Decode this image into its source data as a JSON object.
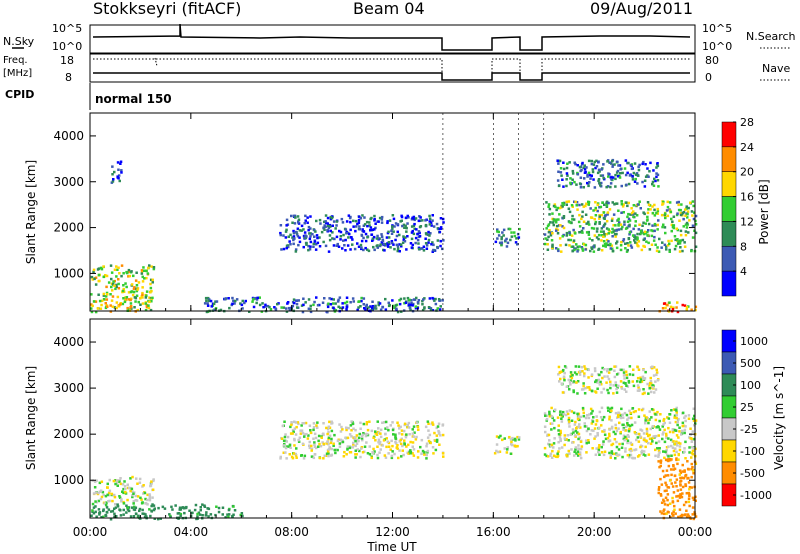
{
  "header": {
    "title": "Stokkseyri (fitACF)",
    "beam": "Beam 04",
    "date": "09/Aug/2011"
  },
  "top_panels": {
    "nsky_label": "N.Sky",
    "nsky_ticks": [
      "10^5",
      "10^0"
    ],
    "nsearch_label": "N.Search",
    "nsearch_ticks": [
      "10^5",
      "10^0"
    ],
    "freq_label_line1": "Freq.",
    "freq_label_line2": "[MHz]",
    "freq_ticks": [
      "18",
      "8"
    ],
    "nave_label": "Nave",
    "nave_ticks": [
      "80",
      "0"
    ],
    "cpid_label": "CPID",
    "cpid_value": "normal 150"
  },
  "chart_data": [
    {
      "type": "heatmap",
      "name": "power",
      "ylabel": "Slant Range [km]",
      "xlabel": "",
      "xlim": [
        0,
        24
      ],
      "ylim": [
        180,
        4500
      ],
      "ytick_values": [
        1000,
        2000,
        3000,
        4000
      ],
      "ytick_labels": [
        "1000",
        "2000",
        "3000",
        "4000"
      ],
      "colorbar_label": "Power [dB]",
      "colorbar_ticks": [
        "4",
        "8",
        "12",
        "16",
        "20",
        "24",
        "28"
      ],
      "colorbar_colors": [
        "#0000ff",
        "#3c5ab4",
        "#2e8b57",
        "#32cd32",
        "#ffd700",
        "#ff8c00",
        "#ff0000"
      ],
      "data_gaps_hours": [
        [
          14.0,
          16.0
        ],
        [
          17.0,
          18.0
        ]
      ],
      "echo_regions": [
        {
          "t0": 0.0,
          "t1": 2.5,
          "r0": 180,
          "r1": 1200,
          "value": 18
        },
        {
          "t0": 0.8,
          "t1": 1.2,
          "r0": 3000,
          "r1": 3500,
          "value": 6
        },
        {
          "t0": 4.5,
          "t1": 14.0,
          "r0": 180,
          "r1": 500,
          "value": 8
        },
        {
          "t0": 7.5,
          "t1": 14.0,
          "r0": 1500,
          "r1": 2300,
          "value": 6
        },
        {
          "t0": 16.0,
          "t1": 17.0,
          "r0": 1600,
          "r1": 2000,
          "value": 10
        },
        {
          "t0": 18.0,
          "t1": 24.0,
          "r0": 1500,
          "r1": 2600,
          "value": 14
        },
        {
          "t0": 18.5,
          "t1": 22.5,
          "r0": 2900,
          "r1": 3500,
          "value": 8
        },
        {
          "t0": 22.5,
          "t1": 24.0,
          "r0": 180,
          "r1": 400,
          "value": 24
        }
      ]
    },
    {
      "type": "heatmap",
      "name": "velocity",
      "ylabel": "Slant Range [km]",
      "xlabel": "Time UT",
      "xlim": [
        0,
        24
      ],
      "ylim": [
        180,
        4500
      ],
      "xtick_labels": [
        "00:00",
        "04:00",
        "08:00",
        "12:00",
        "16:00",
        "20:00",
        "00:00"
      ],
      "ytick_values": [
        1000,
        2000,
        3000,
        4000
      ],
      "ytick_labels": [
        "1000",
        "2000",
        "3000",
        "4000"
      ],
      "colorbar_label": "Velocity [m s^-1]",
      "colorbar_ticks": [
        "1000",
        "500",
        "100",
        "25",
        "-25",
        "-100",
        "-500",
        "-1000"
      ],
      "colorbar_colors": [
        "#0000ff",
        "#3c5ab4",
        "#2e8b57",
        "#32cd32",
        "#c8c8c8",
        "#ffd700",
        "#ff8c00",
        "#ff0000"
      ],
      "echo_regions": [
        {
          "t0": 0.0,
          "t1": 2.5,
          "r0": 500,
          "r1": 1100,
          "value": 0
        },
        {
          "t0": 0.0,
          "t1": 6.0,
          "r0": 180,
          "r1": 500,
          "value": 150
        },
        {
          "t0": 7.5,
          "t1": 14.0,
          "r0": 1500,
          "r1": 2300,
          "value": 0
        },
        {
          "t0": 16.0,
          "t1": 17.0,
          "r0": 1600,
          "r1": 2000,
          "value": 0
        },
        {
          "t0": 18.0,
          "t1": 24.0,
          "r0": 1500,
          "r1": 2600,
          "value": 0
        },
        {
          "t0": 18.5,
          "t1": 22.5,
          "r0": 2900,
          "r1": 3500,
          "value": 0
        },
        {
          "t0": 22.5,
          "t1": 24.0,
          "r0": 180,
          "r1": 1500,
          "value": -150
        }
      ]
    }
  ]
}
